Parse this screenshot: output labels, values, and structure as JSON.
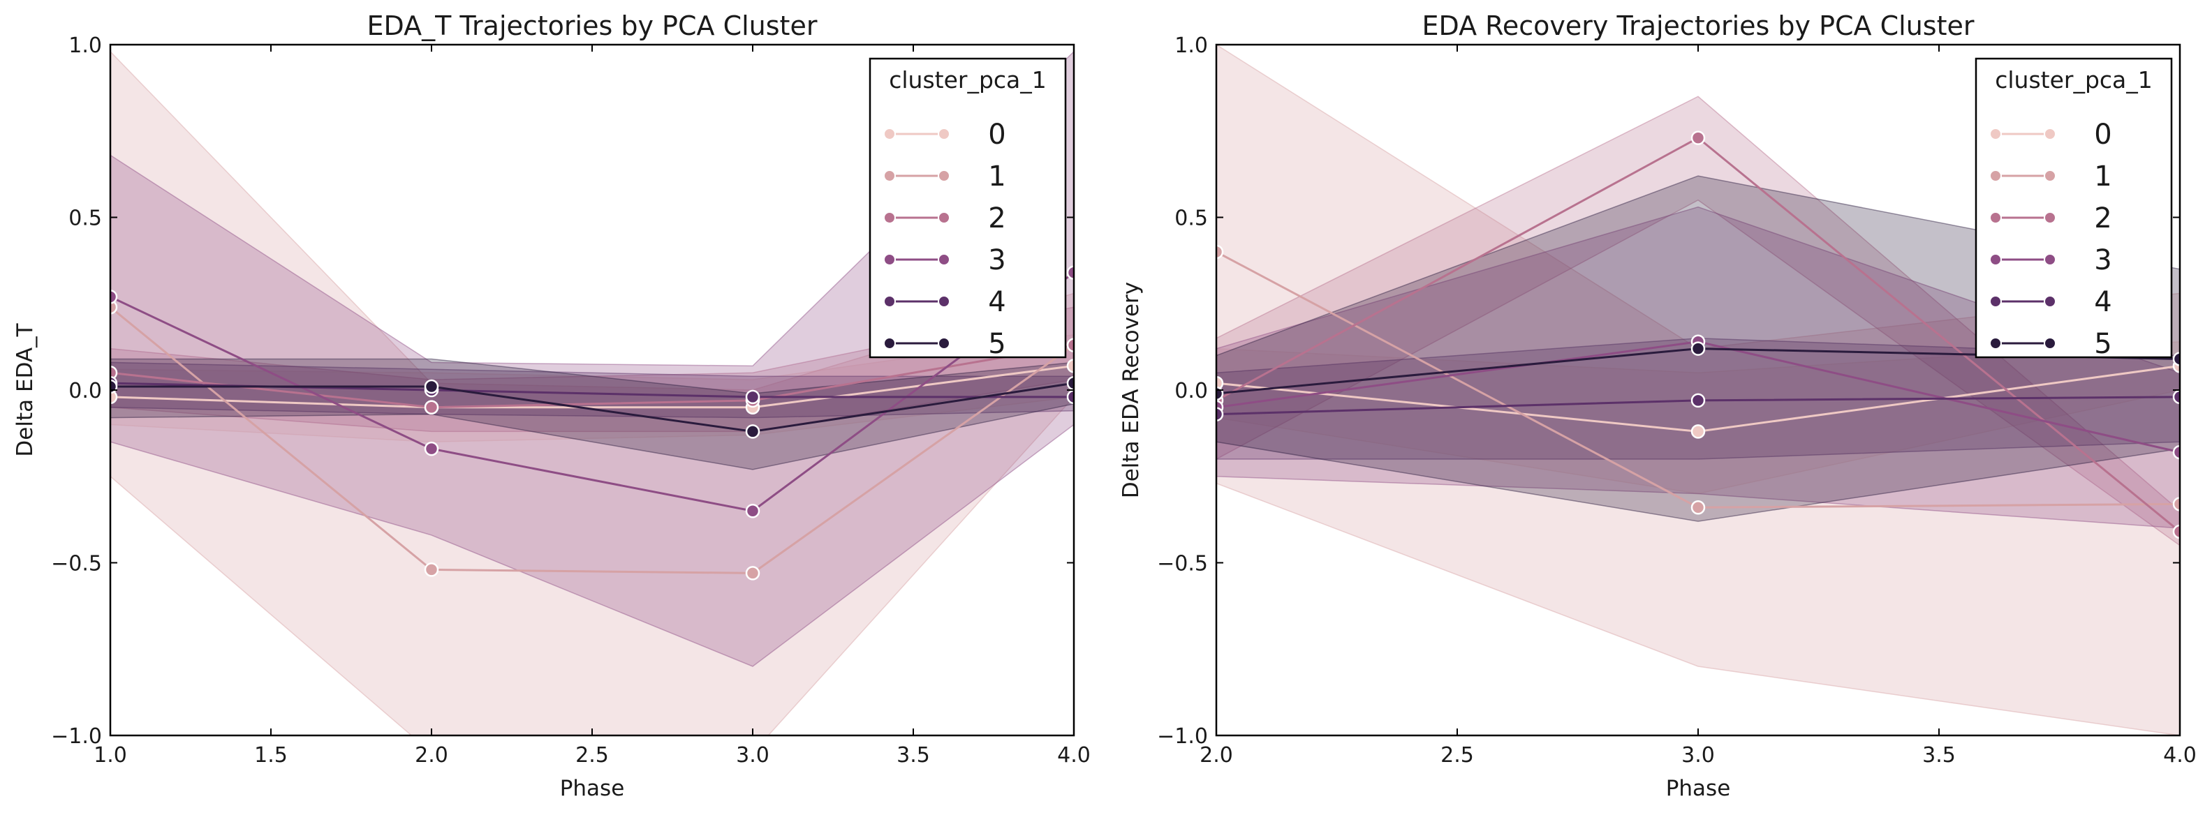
{
  "legend_title": "cluster_pca_1",
  "legend_placement": "top-right",
  "palette": [
    "#efc9c4",
    "#d6a2a5",
    "#b8728f",
    "#8e4d85",
    "#5c3169",
    "#2a1b3d"
  ],
  "chart_data": [
    {
      "type": "line",
      "title": "EDA_T Trajectories by PCA Cluster",
      "xlabel": "Phase",
      "ylabel": "Delta EDA_T",
      "xlim": [
        1.0,
        4.0
      ],
      "ylim": [
        -1.0,
        1.0
      ],
      "xticks": [
        "1.0",
        "1.5",
        "2.0",
        "2.5",
        "3.0",
        "3.5",
        "4.0"
      ],
      "yticks": [
        "−1.0",
        "−0.5",
        "0.0",
        "0.5",
        "1.0"
      ],
      "grid": false,
      "x": [
        1,
        2,
        3,
        4
      ],
      "series": [
        {
          "name": "0",
          "values": [
            -0.02,
            -0.05,
            -0.05,
            0.07
          ],
          "ci_low": [
            -0.1,
            -0.15,
            -0.13,
            -0.02
          ],
          "ci_high": [
            0.06,
            0.05,
            0.03,
            0.16
          ]
        },
        {
          "name": "1",
          "values": [
            0.24,
            -0.52,
            -0.53,
            0.13
          ],
          "ci_low": [
            -0.25,
            -1.05,
            -1.05,
            -0.02
          ],
          "ci_high": [
            0.98,
            0.02,
            0.0,
            0.28
          ]
        },
        {
          "name": "2",
          "values": [
            0.05,
            -0.05,
            -0.03,
            0.13
          ],
          "ci_low": [
            -0.05,
            -0.12,
            -0.12,
            0.03
          ],
          "ci_high": [
            0.12,
            0.03,
            0.05,
            0.24
          ]
        },
        {
          "name": "3",
          "values": [
            0.27,
            -0.17,
            -0.35,
            0.34
          ],
          "ci_low": [
            -0.15,
            -0.42,
            -0.8,
            -0.1
          ],
          "ci_high": [
            0.68,
            0.08,
            0.07,
            0.98
          ]
        },
        {
          "name": "4",
          "values": [
            0.02,
            0.0,
            -0.02,
            -0.02
          ],
          "ci_low": [
            -0.05,
            -0.07,
            -0.08,
            -0.06
          ],
          "ci_high": [
            0.08,
            0.06,
            0.04,
            0.04
          ]
        },
        {
          "name": "5",
          "values": [
            0.01,
            0.01,
            -0.12,
            0.02
          ],
          "ci_low": [
            -0.08,
            -0.07,
            -0.23,
            -0.04
          ],
          "ci_high": [
            0.09,
            0.09,
            -0.01,
            0.08
          ]
        }
      ]
    },
    {
      "type": "line",
      "title": "EDA Recovery Trajectories by PCA Cluster",
      "xlabel": "Phase",
      "ylabel": "Delta EDA Recovery",
      "xlim": [
        2.0,
        4.0
      ],
      "ylim": [
        -1.0,
        1.0
      ],
      "xticks": [
        "2.0",
        "2.5",
        "3.0",
        "3.5",
        "4.0"
      ],
      "yticks": [
        "−1.0",
        "−0.5",
        "0.0",
        "0.5",
        "1.0"
      ],
      "grid": false,
      "x": [
        2,
        3,
        4
      ],
      "series": [
        {
          "name": "0",
          "values": [
            0.02,
            -0.12,
            0.07
          ],
          "ci_low": [
            -0.08,
            -0.3,
            0.0
          ],
          "ci_high": [
            0.12,
            0.05,
            0.14
          ]
        },
        {
          "name": "1",
          "values": [
            0.4,
            -0.34,
            -0.33
          ],
          "ci_low": [
            -0.27,
            -0.8,
            -1.0
          ],
          "ci_high": [
            1.0,
            0.12,
            0.28
          ]
        },
        {
          "name": "2",
          "values": [
            -0.03,
            0.73,
            -0.41
          ],
          "ci_low": [
            -0.2,
            0.55,
            -0.45
          ],
          "ci_high": [
            0.15,
            0.85,
            -0.35
          ]
        },
        {
          "name": "3",
          "values": [
            -0.05,
            0.14,
            -0.18
          ],
          "ci_low": [
            -0.25,
            -0.3,
            -0.4
          ],
          "ci_high": [
            0.12,
            0.53,
            0.05
          ]
        },
        {
          "name": "4",
          "values": [
            -0.07,
            -0.03,
            -0.02
          ],
          "ci_low": [
            -0.2,
            -0.2,
            -0.15
          ],
          "ci_high": [
            0.05,
            0.15,
            0.1
          ]
        },
        {
          "name": "5",
          "values": [
            -0.01,
            0.12,
            0.09
          ],
          "ci_low": [
            -0.15,
            -0.38,
            -0.17
          ],
          "ci_high": [
            0.1,
            0.62,
            0.35
          ]
        }
      ]
    }
  ]
}
